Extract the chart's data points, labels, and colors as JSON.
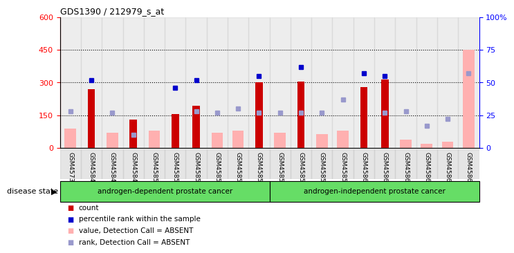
{
  "title": "GDS1390 / 212979_s_at",
  "samples": [
    "GSM45730",
    "GSM45847",
    "GSM45848",
    "GSM45849",
    "GSM45850",
    "GSM45851",
    "GSM45852",
    "GSM45853",
    "GSM45854",
    "GSM45855",
    "GSM45856",
    "GSM45857",
    "GSM45858",
    "GSM45859",
    "GSM45860",
    "GSM45861",
    "GSM45862",
    "GSM45863",
    "GSM45864",
    "GSM45865"
  ],
  "count_values": [
    0,
    270,
    0,
    130,
    0,
    155,
    195,
    0,
    0,
    300,
    0,
    305,
    0,
    0,
    280,
    315,
    0,
    0,
    0,
    0
  ],
  "rank_values": [
    0,
    52,
    0,
    0,
    0,
    46,
    52,
    0,
    0,
    55,
    0,
    62,
    0,
    0,
    57,
    55,
    0,
    0,
    0,
    0
  ],
  "absent_count": [
    90,
    0,
    70,
    0,
    80,
    0,
    0,
    70,
    80,
    0,
    70,
    0,
    65,
    80,
    0,
    0,
    40,
    20,
    30,
    450
  ],
  "absent_rank": [
    28,
    0,
    27,
    10,
    0,
    0,
    28,
    27,
    30,
    27,
    27,
    27,
    27,
    37,
    0,
    27,
    28,
    17,
    22,
    57
  ],
  "group1_label": "androgen-dependent prostate cancer",
  "group2_label": "androgen-independent prostate cancer",
  "group1_count": 10,
  "group2_count": 10,
  "ylim_left": [
    0,
    600
  ],
  "ylim_right": [
    0,
    100
  ],
  "yticks_left": [
    0,
    150,
    300,
    450,
    600
  ],
  "yticks_right": [
    0,
    25,
    50,
    75,
    100
  ],
  "bar_color_red": "#cc0000",
  "bar_color_pink": "#ffb0b0",
  "dot_color_blue": "#0000cc",
  "dot_color_lightblue": "#9999cc",
  "group_bg_color": "#66dd66",
  "tick_bg_color": "#cccccc",
  "legend_items": [
    "count",
    "percentile rank within the sample",
    "value, Detection Call = ABSENT",
    "rank, Detection Call = ABSENT"
  ],
  "legend_colors": [
    "#cc0000",
    "#0000cc",
    "#ffb0b0",
    "#9999cc"
  ]
}
